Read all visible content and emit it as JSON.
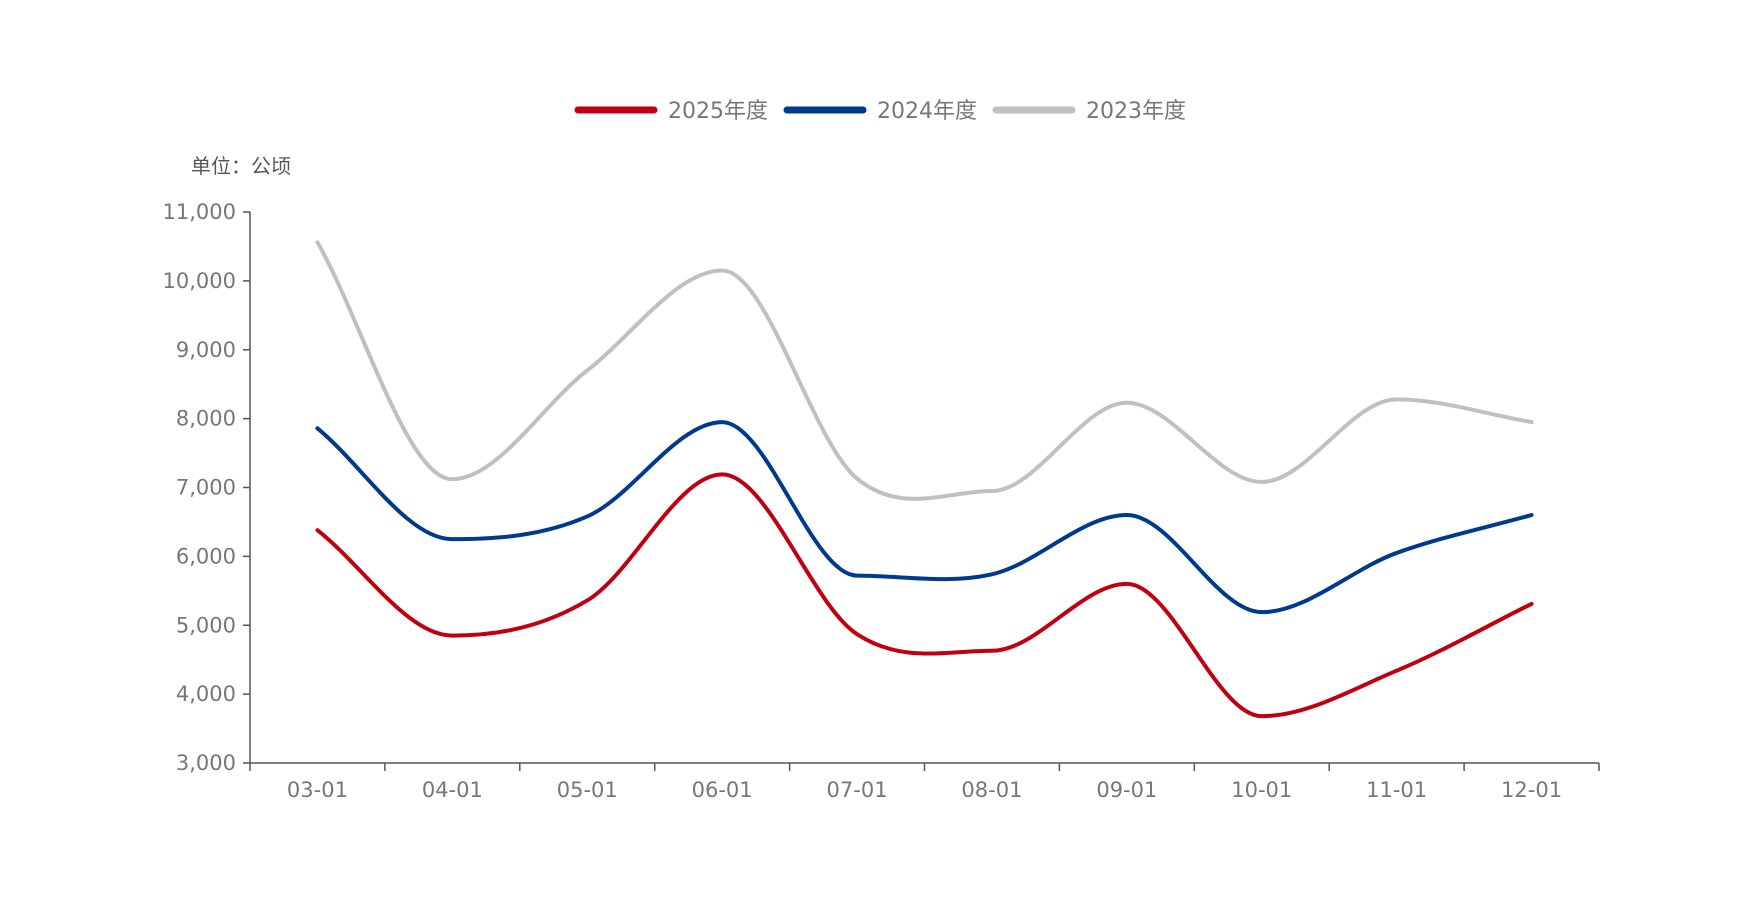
{
  "chart_data": {
    "type": "line",
    "title": "",
    "unit_label": "单位：公顷",
    "xlabel": "",
    "ylabel": "",
    "ylim": [
      3000,
      11000
    ],
    "yticks": [
      3000,
      4000,
      5000,
      6000,
      7000,
      8000,
      9000,
      10000,
      11000
    ],
    "ytick_labels": [
      "3,000",
      "4,000",
      "5,000",
      "6,000",
      "7,000",
      "8,000",
      "9,000",
      "10,000",
      "11,000"
    ],
    "categories": [
      "03-01",
      "04-01",
      "05-01",
      "06-01",
      "07-01",
      "08-01",
      "09-01",
      "10-01",
      "11-01",
      "12-01"
    ],
    "legend_position": "top-center",
    "grid": false,
    "smooth": true,
    "series": [
      {
        "name": "2025年度",
        "color": "#c00010",
        "values": [
          6380,
          4850,
          5360,
          7190,
          4870,
          4630,
          5600,
          3680,
          4340,
          5310
        ]
      },
      {
        "name": "2024年度",
        "color": "#003a8c",
        "values": [
          7860,
          6250,
          6580,
          7950,
          5720,
          5740,
          6600,
          5190,
          6050,
          6600
        ]
      },
      {
        "name": "2023年度",
        "color": "#c0c0c0",
        "values": [
          10560,
          7120,
          8700,
          10150,
          7130,
          6950,
          8230,
          7080,
          8280,
          7950
        ]
      }
    ]
  }
}
